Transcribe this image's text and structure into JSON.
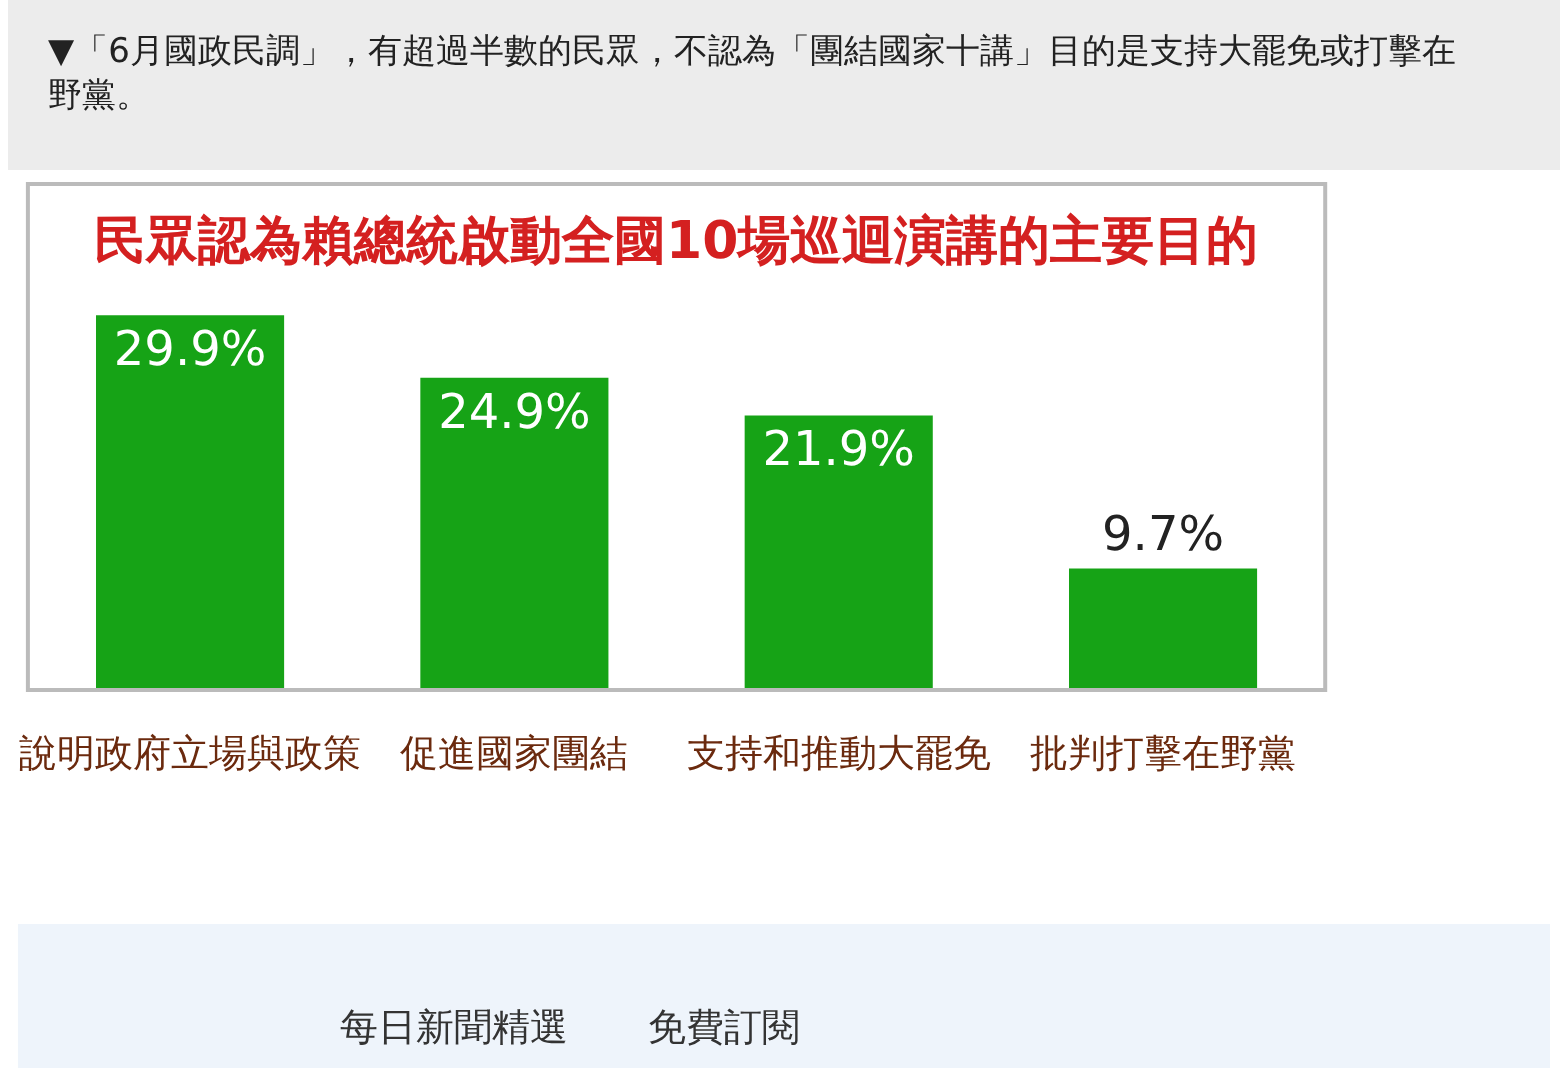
{
  "chart_data": {
    "type": "bar",
    "title": "民眾認為賴總統啟動全國10場巡迴演講的主要目的",
    "categories": [
      "說明政府立場與政策",
      "促進國家團結",
      "支持和推動大罷免",
      "批判打擊在野黨"
    ],
    "values": [
      29.9,
      24.9,
      21.9,
      9.7
    ],
    "color": "#16a316",
    "data_labels": true,
    "value_labels": [
      "29.9%",
      "24.9%",
      "21.9%",
      "9.7%"
    ],
    "legend": false,
    "annotations": [
      "▼「6月國政民調」，有超過半數的民眾，不認為「團結國家十講」目的是支持大罷免或打擊在野黨。",
      "每日新聞精選",
      "免費訂閱"
    ]
  }
}
